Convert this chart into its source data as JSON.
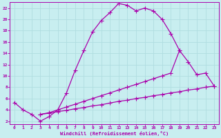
{
  "bg_color": "#c8eef0",
  "grid_color": "#b0dde0",
  "line_color": "#aa00aa",
  "xlabel": "Windchill (Refroidissement éolien,°C)",
  "xlim": [
    -0.5,
    23.5
  ],
  "ylim": [
    1.5,
    23
  ],
  "xticks": [
    0,
    1,
    2,
    3,
    4,
    5,
    6,
    7,
    8,
    9,
    10,
    11,
    12,
    13,
    14,
    15,
    16,
    17,
    18,
    19,
    20,
    21,
    22,
    23
  ],
  "yticks": [
    2,
    4,
    6,
    8,
    10,
    12,
    14,
    16,
    18,
    20,
    22
  ],
  "line1_x": [
    0,
    1,
    2,
    3,
    4,
    5,
    6,
    7,
    8,
    9,
    10,
    11,
    12,
    13,
    14,
    15,
    16,
    17,
    18,
    19
  ],
  "line1_y": [
    5.3,
    4.0,
    3.2,
    2.0,
    2.8,
    4.0,
    7.0,
    11.0,
    14.5,
    17.8,
    19.8,
    21.2,
    22.8,
    22.5,
    21.5,
    22.0,
    21.5,
    20.0,
    17.5,
    14.5
  ],
  "line2_x": [
    3,
    4,
    5,
    6,
    7,
    8,
    9,
    10,
    11,
    12,
    13,
    14,
    15,
    16,
    17,
    18,
    19,
    20,
    21,
    22,
    23
  ],
  "line2_y": [
    3.2,
    3.5,
    4.0,
    4.5,
    5.0,
    5.5,
    6.0,
    6.5,
    7.0,
    7.5,
    8.0,
    8.5,
    9.0,
    9.5,
    10.0,
    10.5,
    14.5,
    12.5,
    10.2,
    10.5,
    8.2
  ],
  "line3_x": [
    3,
    4,
    5,
    6,
    7,
    8,
    9,
    10,
    11,
    12,
    13,
    14,
    15,
    16,
    17,
    18,
    19,
    20,
    21,
    22,
    23
  ],
  "line3_y": [
    3.2,
    3.4,
    3.7,
    3.9,
    4.2,
    4.4,
    4.7,
    4.9,
    5.2,
    5.5,
    5.7,
    6.0,
    6.2,
    6.5,
    6.7,
    7.0,
    7.2,
    7.5,
    7.7,
    8.0,
    8.2
  ]
}
